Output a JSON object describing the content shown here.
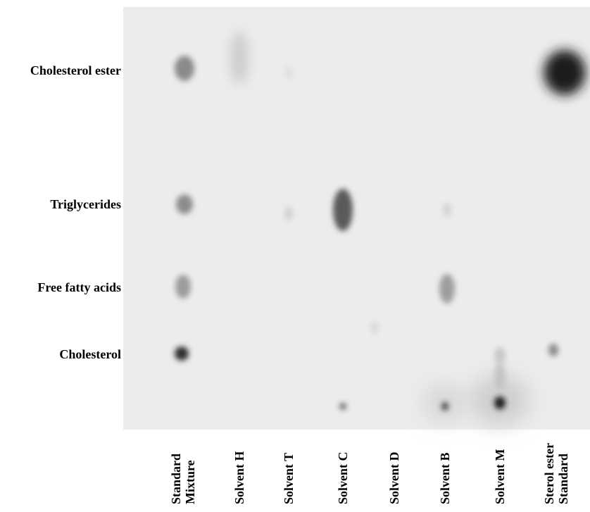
{
  "row_labels": [
    "Cholesterol ester",
    "Triglycerides",
    "Free fatty acids",
    "Cholesterol"
  ],
  "lane_labels": [
    [
      "Standard",
      "Mixture"
    ],
    [
      "Solvent H"
    ],
    [
      "Solvent T"
    ],
    [
      "Solvent C"
    ],
    [
      "Solvent D"
    ],
    [
      "Solvent B"
    ],
    [
      "Solvent M"
    ],
    [
      "Sterol ester",
      "Standard"
    ]
  ]
}
